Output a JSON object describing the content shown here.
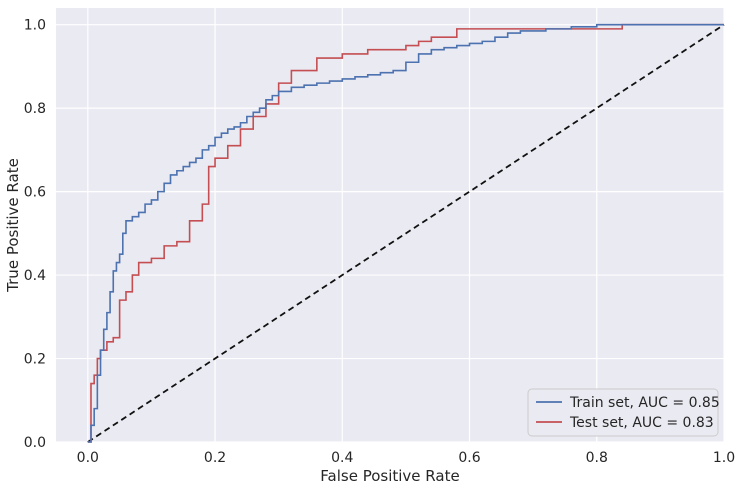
{
  "chart_data": {
    "type": "line",
    "xlabel": "False Positive Rate",
    "ylabel": "True Positive Rate",
    "xlim": [
      -0.05,
      1.0
    ],
    "ylim": [
      0.0,
      1.04
    ],
    "x_ticks": [
      {
        "value": 0.0,
        "label": "0.0"
      },
      {
        "value": 0.2,
        "label": "0.2"
      },
      {
        "value": 0.4,
        "label": "0.4"
      },
      {
        "value": 0.6,
        "label": "0.6"
      },
      {
        "value": 0.8,
        "label": "0.8"
      },
      {
        "value": 1.0,
        "label": "1.0"
      }
    ],
    "y_ticks": [
      {
        "value": 0.0,
        "label": "0.0"
      },
      {
        "value": 0.2,
        "label": "0.2"
      },
      {
        "value": 0.4,
        "label": "0.4"
      },
      {
        "value": 0.6,
        "label": "0.6"
      },
      {
        "value": 0.8,
        "label": "0.8"
      },
      {
        "value": 1.0,
        "label": "1.0"
      }
    ],
    "grid": true,
    "legend_position": "bottom-right",
    "background": "#eaeaf2",
    "series": [
      {
        "name": "Train set, AUC = 0.85",
        "color": "#4c72b0",
        "step": true,
        "x": [
          0.0,
          0.005,
          0.01,
          0.015,
          0.02,
          0.025,
          0.03,
          0.035,
          0.04,
          0.045,
          0.05,
          0.055,
          0.06,
          0.07,
          0.08,
          0.09,
          0.1,
          0.11,
          0.12,
          0.13,
          0.14,
          0.15,
          0.16,
          0.17,
          0.18,
          0.19,
          0.2,
          0.21,
          0.22,
          0.23,
          0.24,
          0.25,
          0.26,
          0.27,
          0.28,
          0.29,
          0.3,
          0.32,
          0.34,
          0.36,
          0.38,
          0.4,
          0.42,
          0.44,
          0.46,
          0.48,
          0.5,
          0.52,
          0.54,
          0.56,
          0.58,
          0.6,
          0.62,
          0.64,
          0.66,
          0.68,
          0.72,
          0.76,
          0.8,
          0.84,
          0.9,
          1.0
        ],
        "y": [
          0.0,
          0.04,
          0.08,
          0.16,
          0.22,
          0.27,
          0.31,
          0.36,
          0.41,
          0.43,
          0.45,
          0.5,
          0.53,
          0.54,
          0.55,
          0.57,
          0.58,
          0.6,
          0.62,
          0.64,
          0.65,
          0.66,
          0.67,
          0.68,
          0.7,
          0.71,
          0.73,
          0.74,
          0.75,
          0.755,
          0.765,
          0.78,
          0.79,
          0.8,
          0.82,
          0.83,
          0.84,
          0.85,
          0.855,
          0.86,
          0.865,
          0.87,
          0.875,
          0.88,
          0.885,
          0.89,
          0.91,
          0.93,
          0.94,
          0.945,
          0.95,
          0.955,
          0.96,
          0.97,
          0.98,
          0.985,
          0.99,
          0.995,
          1.0,
          1.0,
          1.0,
          1.0
        ]
      },
      {
        "name": "Test set, AUC = 0.83",
        "color": "#c44e52",
        "step": true,
        "x": [
          0.0,
          0.005,
          0.01,
          0.015,
          0.02,
          0.03,
          0.04,
          0.05,
          0.06,
          0.07,
          0.08,
          0.1,
          0.12,
          0.14,
          0.16,
          0.18,
          0.19,
          0.2,
          0.22,
          0.24,
          0.26,
          0.28,
          0.3,
          0.32,
          0.36,
          0.4,
          0.44,
          0.48,
          0.5,
          0.52,
          0.54,
          0.58,
          0.68,
          0.76,
          0.84,
          1.0
        ],
        "y": [
          0.0,
          0.14,
          0.16,
          0.2,
          0.22,
          0.24,
          0.25,
          0.34,
          0.36,
          0.4,
          0.43,
          0.44,
          0.47,
          0.48,
          0.53,
          0.57,
          0.66,
          0.68,
          0.71,
          0.75,
          0.78,
          0.81,
          0.86,
          0.89,
          0.92,
          0.93,
          0.94,
          0.94,
          0.95,
          0.96,
          0.97,
          0.99,
          0.99,
          0.99,
          1.0,
          1.0
        ]
      },
      {
        "name": "",
        "color": "#111111",
        "dashed": true,
        "x": [
          0.0,
          1.0
        ],
        "y": [
          0.0,
          1.0
        ]
      }
    ]
  }
}
